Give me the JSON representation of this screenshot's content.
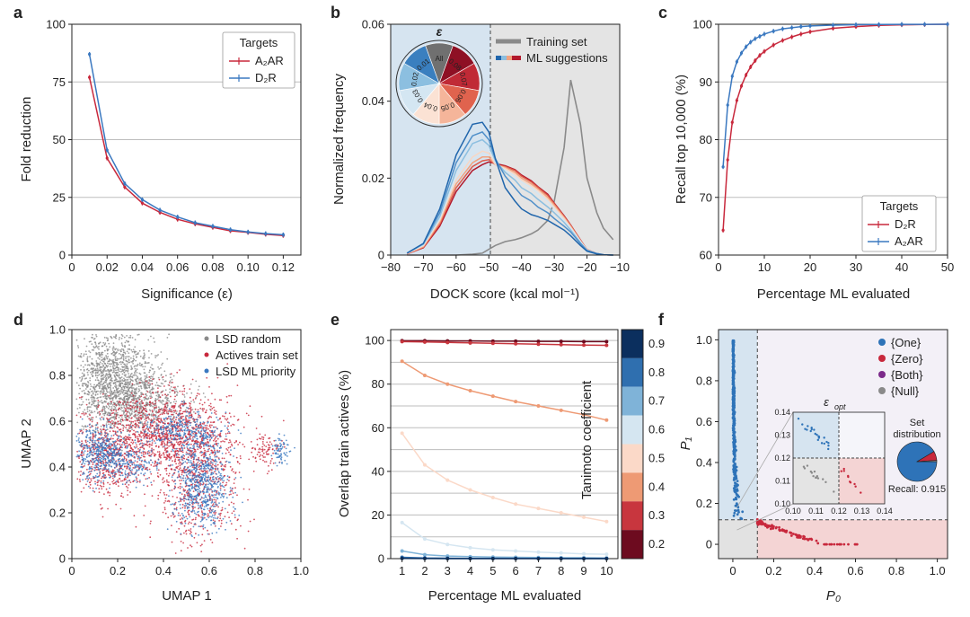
{
  "panels": [
    {
      "id": "a",
      "label": "a"
    },
    {
      "id": "b",
      "label": "b"
    },
    {
      "id": "c",
      "label": "c"
    },
    {
      "id": "d",
      "label": "d"
    },
    {
      "id": "e",
      "label": "e"
    },
    {
      "id": "f",
      "label": "f"
    }
  ],
  "chart_data": [
    {
      "panel": "a",
      "type": "line",
      "xlabel": "Significance (ε)",
      "ylabel": "Fold reduction",
      "xlim": [
        0.0,
        0.13
      ],
      "ylim": [
        0,
        100
      ],
      "xticks": [
        "0",
        "0.02",
        "0.04",
        "0.06",
        "0.08",
        "0.10",
        "0.12"
      ],
      "yticks": [
        "0",
        "25",
        "50",
        "75",
        "100"
      ],
      "grid": "horizontal",
      "legend": {
        "title": "Targets",
        "placement": "top-right"
      },
      "x": [
        0.01,
        0.02,
        0.03,
        0.04,
        0.05,
        0.06,
        0.07,
        0.08,
        0.09,
        0.1,
        0.11,
        0.12
      ],
      "series": [
        {
          "name": "A₂AR",
          "color": "#c8283c",
          "values": [
            77,
            42,
            29.5,
            22.5,
            18.5,
            15.5,
            13.5,
            12,
            10.5,
            9.8,
            9,
            8.5
          ]
        },
        {
          "name": "D₂R",
          "color": "#3a78c0",
          "values": [
            87,
            45.5,
            31,
            24,
            19.5,
            16.5,
            14,
            12.5,
            11,
            10,
            9.3,
            8.8
          ]
        }
      ]
    },
    {
      "panel": "b",
      "type": "line",
      "xlabel": "DOCK score (kcal mol⁻¹)",
      "ylabel": "Normalized frequency",
      "xlim": [
        -80,
        -10
      ],
      "ylim": [
        0,
        0.06
      ],
      "xticks": [
        "−80",
        "−70",
        "−60",
        "−50",
        "−40",
        "−30",
        "−20",
        "−10"
      ],
      "yticks": [
        "0",
        "0.02",
        "0.04",
        "0.06"
      ],
      "cutoff": -50,
      "legend": [
        "Training set",
        "ML suggestions"
      ],
      "inset_title": "ε",
      "inset_labels": [
        "All",
        "0.08",
        "0.07",
        "0.06",
        "0.05",
        "0.04",
        "0.03",
        "0.02",
        "0.01"
      ],
      "x": [
        -75,
        -70,
        -65,
        -60,
        -55,
        -52,
        -50,
        -48,
        -45,
        -42,
        -40,
        -37,
        -35,
        -32,
        -30,
        -27,
        -25,
        -22,
        -20,
        -17,
        -15,
        -12
      ],
      "training_set": [
        0,
        0,
        0,
        0,
        0.0002,
        0.0005,
        0.0015,
        0.0025,
        0.0035,
        0.004,
        0.0045,
        0.0055,
        0.0065,
        0.009,
        0.014,
        0.028,
        0.0455,
        0.034,
        0.02,
        0.011,
        0.007,
        0.004
      ],
      "ml_suggestions": [
        {
          "epsilon": "0.01",
          "color": "#2166ac",
          "values": [
            0.0005,
            0.003,
            0.012,
            0.026,
            0.034,
            0.0345,
            0.032,
            0.025,
            0.0175,
            0.014,
            0.012,
            0.0105,
            0.01,
            0.009,
            0.008,
            0.0065,
            0.005,
            0.0025,
            0.001,
            0.0003,
            0.0001,
            0
          ]
        },
        {
          "epsilon": "0.02",
          "color": "#4f8fc9",
          "values": [
            0.0005,
            0.003,
            0.011,
            0.024,
            0.031,
            0.032,
            0.03,
            0.025,
            0.0205,
            0.0175,
            0.0155,
            0.014,
            0.0125,
            0.011,
            0.0095,
            0.0075,
            0.006,
            0.003,
            0.0012,
            0.0004,
            0.0001,
            0
          ]
        },
        {
          "epsilon": "0.03",
          "color": "#8cbfe0",
          "values": [
            0.0005,
            0.0028,
            0.01,
            0.022,
            0.029,
            0.03,
            0.0285,
            0.0245,
            0.0215,
            0.0195,
            0.0175,
            0.016,
            0.0145,
            0.0125,
            0.011,
            0.0085,
            0.0065,
            0.0032,
            0.0012,
            0.0004,
            0.0001,
            0
          ]
        },
        {
          "epsilon": "0.04",
          "color": "#d4e6f2",
          "values": [
            0.0005,
            0.0026,
            0.0095,
            0.0205,
            0.027,
            0.0285,
            0.0275,
            0.024,
            0.022,
            0.0205,
            0.019,
            0.0175,
            0.016,
            0.014,
            0.012,
            0.009,
            0.007,
            0.0035,
            0.0013,
            0.0004,
            0.0001,
            0
          ]
        },
        {
          "epsilon": "0.05",
          "color": "#f7d7c4",
          "values": [
            0.0004,
            0.0024,
            0.009,
            0.0195,
            0.0255,
            0.027,
            0.0265,
            0.0235,
            0.0225,
            0.021,
            0.0195,
            0.018,
            0.0168,
            0.0145,
            0.0125,
            0.0095,
            0.0072,
            0.0036,
            0.0013,
            0.0004,
            0.0001,
            0
          ]
        },
        {
          "epsilon": "0.06",
          "color": "#f2a27e",
          "values": [
            0.0004,
            0.0022,
            0.0085,
            0.0185,
            0.024,
            0.0255,
            0.0255,
            0.0235,
            0.0228,
            0.0215,
            0.02,
            0.0185,
            0.0172,
            0.015,
            0.013,
            0.0098,
            0.0075,
            0.0037,
            0.0014,
            0.0004,
            0.0001,
            0
          ]
        },
        {
          "epsilon": "0.07",
          "color": "#de5a4a",
          "values": [
            0.0003,
            0.002,
            0.008,
            0.0175,
            0.023,
            0.0245,
            0.0248,
            0.0235,
            0.023,
            0.022,
            0.0205,
            0.019,
            0.0176,
            0.0155,
            0.0133,
            0.01,
            0.0077,
            0.0038,
            0.0014,
            0.0004,
            0.0001,
            0
          ]
        },
        {
          "epsilon": "0.08",
          "color": "#b2182b",
          "values": [
            0.0003,
            0.0019,
            0.0075,
            0.0165,
            0.022,
            0.0235,
            0.0242,
            0.0238,
            0.0232,
            0.0222,
            0.0208,
            0.0193,
            0.0178,
            0.0158,
            0.0135,
            0.0102,
            0.0078,
            0.0039,
            0.0014,
            0.0004,
            0.0001,
            0
          ]
        }
      ]
    },
    {
      "panel": "c",
      "type": "line",
      "xlabel": "Percentage ML evaluated",
      "ylabel": "Recall top 10,000 (%)",
      "xlim": [
        0,
        50
      ],
      "ylim": [
        60,
        100
      ],
      "xticks": [
        "0",
        "10",
        "20",
        "30",
        "40",
        "50"
      ],
      "yticks": [
        "60",
        "70",
        "80",
        "90",
        "100"
      ],
      "grid": "horizontal",
      "legend": {
        "title": "Targets",
        "placement": "bottom-right"
      },
      "x": [
        1,
        2,
        3,
        4,
        5,
        6,
        7,
        8,
        9,
        10,
        12,
        14,
        16,
        18,
        20,
        25,
        30,
        35,
        40,
        45,
        50
      ],
      "series": [
        {
          "name": "D₂R",
          "color": "#c8283c",
          "values": [
            64.3,
            76.5,
            83,
            86.8,
            89.3,
            91.2,
            92.6,
            93.7,
            94.6,
            95.3,
            96.4,
            97.2,
            97.8,
            98.3,
            98.7,
            99.3,
            99.6,
            99.8,
            99.9,
            99.95,
            100
          ]
        },
        {
          "name": "A₂AR",
          "color": "#3a78c0",
          "values": [
            75.3,
            86,
            91,
            93.5,
            95,
            96.1,
            96.9,
            97.5,
            97.9,
            98.3,
            98.8,
            99.2,
            99.4,
            99.6,
            99.7,
            99.85,
            99.92,
            99.96,
            99.98,
            99.99,
            100
          ]
        }
      ]
    },
    {
      "panel": "d",
      "type": "scatter",
      "xlabel": "UMAP 1",
      "ylabel": "UMAP 2",
      "xlim": [
        0,
        1
      ],
      "ylim": [
        0,
        1
      ],
      "xticks": [
        "0",
        "0.2",
        "0.4",
        "0.6",
        "0.8",
        "1.0"
      ],
      "yticks": [
        "0",
        "0.2",
        "0.4",
        "0.6",
        "0.8",
        "1.0"
      ],
      "legend": {
        "placement": "top-right"
      },
      "series": [
        {
          "name": "LSD random",
          "color": "#8a8a8a",
          "clusters": [
            [
              0.18,
              0.78,
              0.09,
              0.12,
              1400
            ],
            [
              0.32,
              0.68,
              0.1,
              0.06,
              500
            ]
          ]
        },
        {
          "name": "Actives train set",
          "color": "#c8283c",
          "clusters": [
            [
              0.38,
              0.55,
              0.16,
              0.09,
              1200
            ],
            [
              0.55,
              0.35,
              0.09,
              0.15,
              700
            ],
            [
              0.15,
              0.42,
              0.08,
              0.08,
              400
            ],
            [
              0.85,
              0.47,
              0.03,
              0.04,
              80
            ]
          ]
        },
        {
          "name": "LSD ML priority",
          "color": "#3a78c0",
          "clusters": [
            [
              0.13,
              0.46,
              0.06,
              0.06,
              450
            ],
            [
              0.57,
              0.33,
              0.06,
              0.11,
              650
            ],
            [
              0.48,
              0.56,
              0.09,
              0.04,
              300
            ],
            [
              0.91,
              0.47,
              0.02,
              0.03,
              70
            ],
            [
              0.26,
              0.41,
              0.05,
              0.04,
              150
            ]
          ]
        }
      ]
    },
    {
      "panel": "e",
      "type": "line",
      "xlabel": "Percentage ML evaluated",
      "ylabel": "Overlap train actives (%)",
      "colorbar_label": "Tanimoto coefficient",
      "xlim": [
        0.5,
        10.5
      ],
      "ylim": [
        0,
        105
      ],
      "x": [
        1,
        2,
        3,
        4,
        5,
        6,
        7,
        8,
        9,
        10
      ],
      "xticks": [
        "1",
        "2",
        "3",
        "4",
        "5",
        "6",
        "7",
        "8",
        "9",
        "10"
      ],
      "yticks": [
        "0",
        "20",
        "40",
        "60",
        "80",
        "100"
      ],
      "colorbar": {
        "ticks": [
          "0.9",
          "0.8",
          "0.7",
          "0.6",
          "0.5",
          "0.4",
          "0.3",
          "0.2"
        ],
        "colors": [
          "#0b2f5e",
          "#2f6faf",
          "#7fb3d8",
          "#d5e6f1",
          "#fbd9c8",
          "#ee9a74",
          "#c8363e",
          "#6d0b1f"
        ]
      },
      "series": [
        {
          "tanimoto": "0.2",
          "color": "#6d0b1f",
          "values": [
            99.9,
            99.9,
            99.8,
            99.8,
            99.7,
            99.7,
            99.6,
            99.6,
            99.5,
            99.5
          ]
        },
        {
          "tanimoto": "0.3",
          "color": "#c8363e",
          "values": [
            99.5,
            99.3,
            99.1,
            98.9,
            98.7,
            98.5,
            98.3,
            98.1,
            97.9,
            97.8
          ]
        },
        {
          "tanimoto": "0.4",
          "color": "#ee9a74",
          "values": [
            90.5,
            84,
            80,
            77,
            74.5,
            72,
            70,
            68,
            66,
            63.5
          ]
        },
        {
          "tanimoto": "0.5",
          "color": "#fbd9c8",
          "values": [
            57.5,
            43,
            36,
            31.5,
            28,
            25,
            23,
            21,
            19,
            17
          ]
        },
        {
          "tanimoto": "0.6",
          "color": "#d5e6f1",
          "values": [
            16.5,
            9,
            6.5,
            5,
            4,
            3.5,
            3,
            2.6,
            2.2,
            2
          ]
        },
        {
          "tanimoto": "0.7",
          "color": "#7fb3d8",
          "values": [
            3.5,
            1.8,
            1.2,
            0.9,
            0.7,
            0.6,
            0.5,
            0.4,
            0.4,
            0.3
          ]
        },
        {
          "tanimoto": "0.8",
          "color": "#2f6faf",
          "values": [
            0.6,
            0.3,
            0.2,
            0.1,
            0.1,
            0.1,
            0.1,
            0.1,
            0.05,
            0.05
          ]
        },
        {
          "tanimoto": "0.9",
          "color": "#0b2f5e",
          "values": [
            0.1,
            0.05,
            0.02,
            0.02,
            0.01,
            0.01,
            0.01,
            0.01,
            0.01,
            0.01
          ]
        }
      ]
    },
    {
      "panel": "f",
      "type": "scatter",
      "xlabel": "P₀",
      "ylabel": "P₁",
      "xlim": [
        -0.07,
        1.05
      ],
      "ylim": [
        -0.07,
        1.05
      ],
      "xticks": [
        "0",
        "0.2",
        "0.4",
        "0.6",
        "0.8",
        "1.0"
      ],
      "yticks": [
        "0",
        "0.2",
        "0.4",
        "0.6",
        "0.8",
        "1.0"
      ],
      "epsilon_opt": 0.12,
      "legend": [
        {
          "name": "{One}",
          "color": "#2e73b8"
        },
        {
          "name": "{Zero}",
          "color": "#c8283c"
        },
        {
          "name": "{Both}",
          "color": "#7b2a8a"
        },
        {
          "name": "{Null}",
          "color": "#8a8a8a"
        }
      ],
      "inset": {
        "title": "ε",
        "title_sub": "opt",
        "xlim": [
          0.1,
          0.14
        ],
        "ylim": [
          0.1,
          0.14
        ],
        "xticks": [
          "0.10",
          "0.11",
          "0.12",
          "0.13",
          "0.14"
        ],
        "yticks": [
          "0.10",
          "0.11",
          "0.12",
          "0.13",
          "0.14"
        ]
      },
      "pie": {
        "title_line1": "Set",
        "title_line2": "distribution",
        "slices": [
          {
            "name": "{One}",
            "value": 0.915
          },
          {
            "name": "{Zero}",
            "value": 0.075
          },
          {
            "name": "{Null}",
            "value": 0.01
          }
        ],
        "recall_label": "Recall: 0.915"
      }
    }
  ]
}
